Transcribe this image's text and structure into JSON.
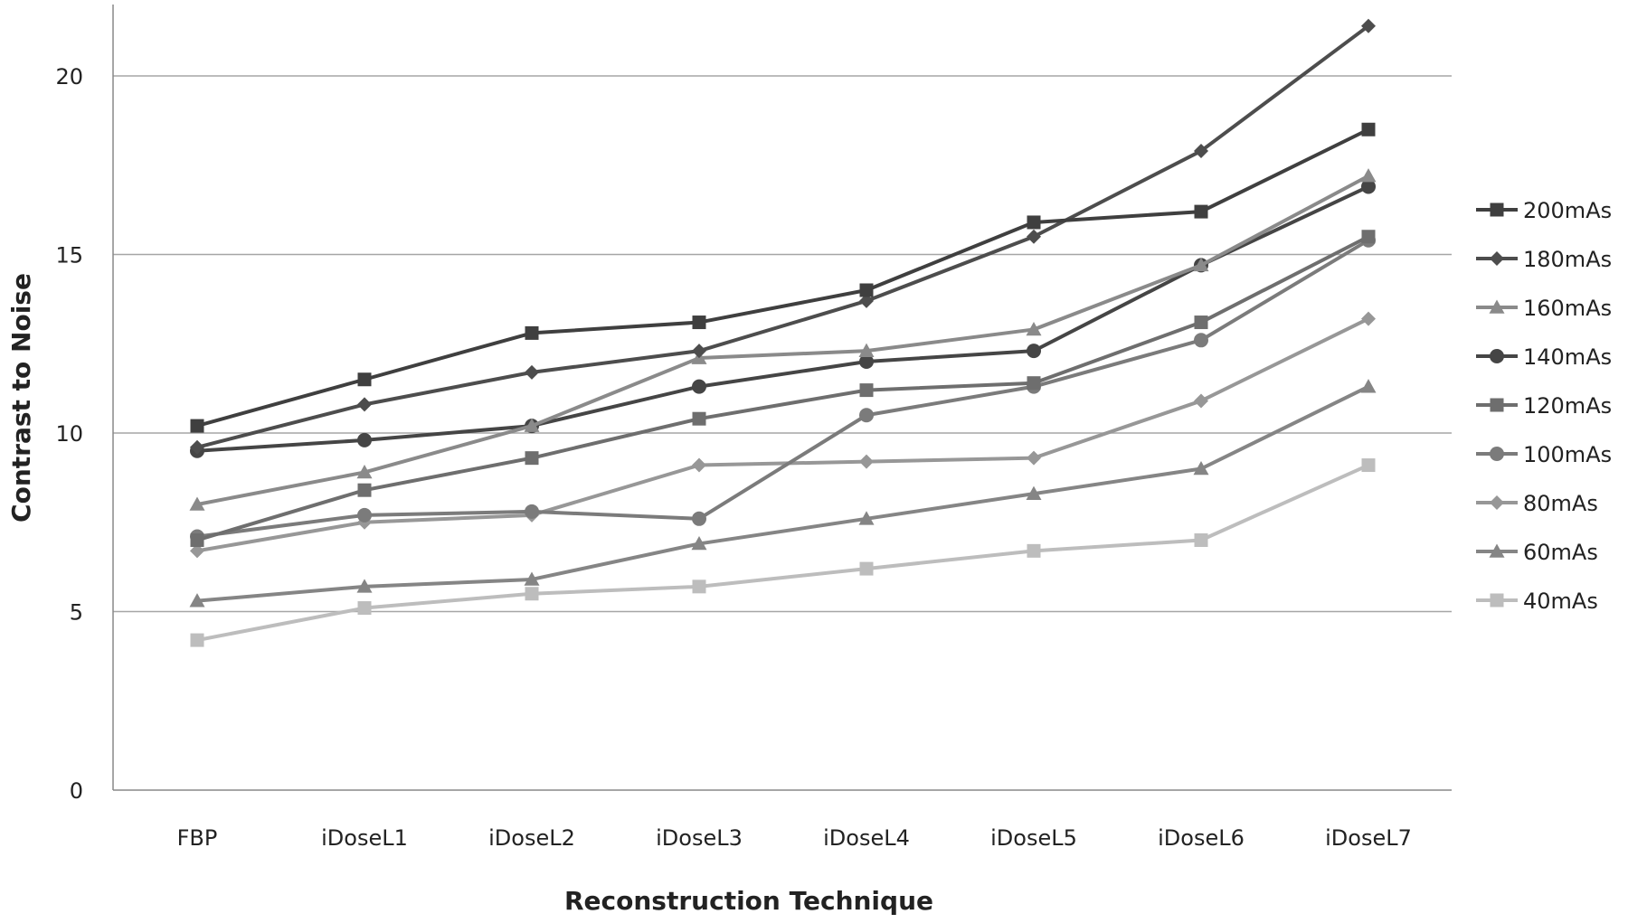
{
  "chart_data": {
    "type": "line",
    "title": "",
    "xlabel": "Reconstruction Technique",
    "ylabel": "Contrast to Noise",
    "ylim": [
      0,
      22
    ],
    "yticks": [
      0,
      5,
      10,
      15,
      20
    ],
    "grid": true,
    "legend_position": "right",
    "categories": [
      "FBP",
      "iDoseL1",
      "iDoseL2",
      "iDoseL3",
      "iDoseL4",
      "iDoseL5",
      "iDoseL6",
      "iDoseL7"
    ],
    "series": [
      {
        "name": "200mAs",
        "marker": "square",
        "color": "#3f3f3f",
        "values": [
          10.2,
          11.5,
          12.8,
          13.1,
          14.0,
          15.9,
          16.2,
          18.5
        ]
      },
      {
        "name": "180mAs",
        "marker": "diamond",
        "color": "#4d4d4d",
        "values": [
          9.6,
          10.8,
          11.7,
          12.3,
          13.7,
          15.5,
          17.9,
          21.4
        ]
      },
      {
        "name": "160mAs",
        "marker": "triangle",
        "color": "#8a8a8a",
        "values": [
          8.0,
          8.9,
          10.2,
          12.1,
          12.3,
          12.9,
          14.7,
          17.2
        ]
      },
      {
        "name": "140mAs",
        "marker": "circle",
        "color": "#454545",
        "values": [
          9.5,
          9.8,
          10.2,
          11.3,
          12.0,
          12.3,
          14.7,
          16.9
        ]
      },
      {
        "name": "120mAs",
        "marker": "square",
        "color": "#6e6e6e",
        "values": [
          7.0,
          8.4,
          9.3,
          10.4,
          11.2,
          11.4,
          13.1,
          15.5
        ]
      },
      {
        "name": "100mAs",
        "marker": "circle",
        "color": "#7b7b7b",
        "values": [
          7.1,
          7.7,
          7.8,
          7.6,
          10.5,
          11.3,
          12.6,
          15.4
        ]
      },
      {
        "name": "80mAs",
        "marker": "diamond",
        "color": "#979797",
        "values": [
          6.7,
          7.5,
          7.7,
          9.1,
          9.2,
          9.3,
          10.9,
          13.2
        ]
      },
      {
        "name": "60mAs",
        "marker": "triangle",
        "color": "#858585",
        "values": [
          5.3,
          5.7,
          5.9,
          6.9,
          7.6,
          8.3,
          9.0,
          11.3
        ]
      },
      {
        "name": "40mAs",
        "marker": "square",
        "color": "#bdbdbd",
        "values": [
          4.2,
          5.1,
          5.5,
          5.7,
          6.2,
          6.7,
          7.0,
          9.1
        ]
      }
    ]
  }
}
